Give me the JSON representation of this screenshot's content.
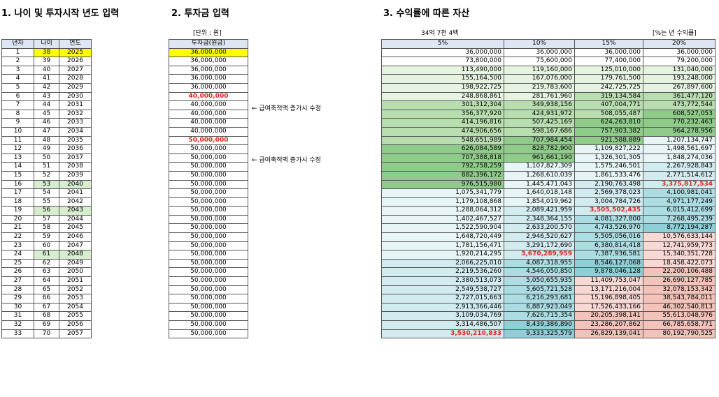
{
  "titles": {
    "t1": "1. 나이 및 투자시작 년도 입력",
    "t2": "2. 투자금 입력",
    "t3": "3. 수익률에 따른 자산"
  },
  "notes": {
    "unit": "[단위 : 원]",
    "total": "34억 7천 4백",
    "pct": "[%는 년 수익률]",
    "memo": "← 급여축적액 증가시 수정"
  },
  "t1": {
    "headers": [
      "년차",
      "나이",
      "연도"
    ],
    "rows": [
      [
        "1",
        "38",
        "2025"
      ],
      [
        "2",
        "39",
        "2026"
      ],
      [
        "3",
        "40",
        "2027"
      ],
      [
        "4",
        "41",
        "2028"
      ],
      [
        "5",
        "42",
        "2029"
      ],
      [
        "6",
        "43",
        "2030"
      ],
      [
        "7",
        "44",
        "2031"
      ],
      [
        "8",
        "45",
        "2032"
      ],
      [
        "9",
        "46",
        "2033"
      ],
      [
        "10",
        "47",
        "2034"
      ],
      [
        "11",
        "48",
        "2035"
      ],
      [
        "12",
        "49",
        "2036"
      ],
      [
        "13",
        "50",
        "2037"
      ],
      [
        "14",
        "51",
        "2038"
      ],
      [
        "15",
        "52",
        "2039"
      ],
      [
        "16",
        "53",
        "2040"
      ],
      [
        "17",
        "54",
        "2041"
      ],
      [
        "18",
        "55",
        "2042"
      ],
      [
        "19",
        "56",
        "2043"
      ],
      [
        "20",
        "57",
        "2044"
      ],
      [
        "21",
        "58",
        "2045"
      ],
      [
        "22",
        "59",
        "2046"
      ],
      [
        "23",
        "60",
        "2047"
      ],
      [
        "24",
        "61",
        "2048"
      ],
      [
        "25",
        "62",
        "2049"
      ],
      [
        "26",
        "63",
        "2050"
      ],
      [
        "27",
        "64",
        "2051"
      ],
      [
        "28",
        "65",
        "2052"
      ],
      [
        "29",
        "66",
        "2053"
      ],
      [
        "30",
        "67",
        "2054"
      ],
      [
        "31",
        "68",
        "2055"
      ],
      [
        "32",
        "69",
        "2056"
      ],
      [
        "33",
        "70",
        "2057"
      ]
    ]
  },
  "t2": {
    "header": "투자금(원금)",
    "rows": [
      "36,000,000",
      "36,000,000",
      "36,000,000",
      "36,000,000",
      "36,000,000",
      "40,000,000",
      "40,000,000",
      "40,000,000",
      "40,000,000",
      "40,000,000",
      "50,000,000",
      "50,000,000",
      "50,000,000",
      "50,000,000",
      "50,000,000",
      "50,000,000",
      "50,000,000",
      "50,000,000",
      "50,000,000",
      "50,000,000",
      "50,000,000",
      "50,000,000",
      "50,000,000",
      "50,000,000",
      "50,000,000",
      "50,000,000",
      "50,000,000",
      "50,000,000",
      "50,000,000",
      "50,000,000",
      "50,000,000",
      "50,000,000",
      "50,000,000"
    ]
  },
  "t3": {
    "headers": [
      "5%",
      "10%",
      "15%",
      "20%"
    ],
    "rows": [
      [
        "36,000,000",
        "36,000,000",
        "36,000,000",
        "36,000,000"
      ],
      [
        "73,800,000",
        "75,600,000",
        "77,400,000",
        "79,200,000"
      ],
      [
        "113,490,000",
        "119,160,000",
        "125,010,000",
        "131,040,000"
      ],
      [
        "155,164,500",
        "167,076,000",
        "179,761,500",
        "193,248,000"
      ],
      [
        "198,922,725",
        "219,783,600",
        "242,725,725",
        "267,897,600"
      ],
      [
        "248,868,861",
        "281,761,960",
        "319,134,584",
        "361,477,120"
      ],
      [
        "301,312,304",
        "349,938,156",
        "407,004,771",
        "473,772,544"
      ],
      [
        "356,377,920",
        "424,931,972",
        "508,055,487",
        "608,527,053"
      ],
      [
        "414,196,816",
        "507,425,169",
        "624,263,810",
        "770,232,463"
      ],
      [
        "474,906,656",
        "598,167,686",
        "757,903,382",
        "964,278,956"
      ],
      [
        "548,651,989",
        "707,984,454",
        "921,588,889",
        "1,207,134,747"
      ],
      [
        "626,084,589",
        "828,782,900",
        "1,109,827,222",
        "1,498,561,697"
      ],
      [
        "707,388,818",
        "961,661,190",
        "1,326,301,305",
        "1,848,274,036"
      ],
      [
        "792,758,259",
        "1,107,827,309",
        "1,575,246,501",
        "2,267,928,843"
      ],
      [
        "882,396,172",
        "1,268,610,039",
        "1,861,533,476",
        "2,771,514,612"
      ],
      [
        "976,515,980",
        "1,445,471,043",
        "2,190,763,498",
        "3,375,817,534"
      ],
      [
        "1,075,341,779",
        "1,640,018,148",
        "2,569,378,023",
        "4,100,981,041"
      ],
      [
        "1,179,108,868",
        "1,854,019,962",
        "3,004,784,726",
        "4,971,177,249"
      ],
      [
        "1,288,064,312",
        "2,089,421,959",
        "3,505,502,435",
        "6,015,412,699"
      ],
      [
        "1,402,467,527",
        "2,348,364,155",
        "4,081,327,800",
        "7,268,495,239"
      ],
      [
        "1,522,590,904",
        "2,633,200,570",
        "4,743,526,970",
        "8,772,194,287"
      ],
      [
        "1,648,720,449",
        "2,946,520,627",
        "5,505,056,016",
        "10,576,633,144"
      ],
      [
        "1,781,156,471",
        "3,291,172,690",
        "6,380,814,418",
        "12,741,959,773"
      ],
      [
        "1,920,214,295",
        "3,670,289,959",
        "7,387,936,581",
        "15,340,351,728"
      ],
      [
        "2,066,225,010",
        "4,087,318,955",
        "8,546,127,068",
        "18,458,422,073"
      ],
      [
        "2,219,536,260",
        "4,546,050,850",
        "9,878,046,128",
        "22,200,106,488"
      ],
      [
        "2,380,513,073",
        "5,050,655,935",
        "11,409,753,047",
        "26,690,127,785"
      ],
      [
        "2,549,538,727",
        "5,605,721,528",
        "13,171,216,004",
        "32,078,153,342"
      ],
      [
        "2,727,015,663",
        "6,216,293,681",
        "15,196,898,405",
        "38,543,784,011"
      ],
      [
        "2,913,366,446",
        "6,887,923,049",
        "17,526,433,166",
        "46,302,540,813"
      ],
      [
        "3,109,034,769",
        "7,626,715,354",
        "20,205,398,141",
        "55,613,048,976"
      ],
      [
        "3,314,486,507",
        "8,439,386,890",
        "23,286,207,862",
        "66,785,658,771"
      ],
      [
        "3,530,210,833",
        "9,333,325,579",
        "26,829,139,041",
        "80,192,790,525"
      ]
    ]
  },
  "style": {
    "highlight_yellow": "#ffff00",
    "highlight_green": "#d8ecd0",
    "red_text": "#e0231b"
  }
}
